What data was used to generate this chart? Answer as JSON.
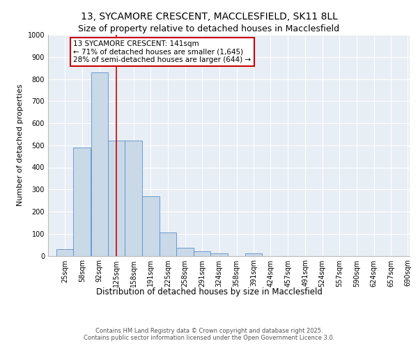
{
  "title_line1": "13, SYCAMORE CRESCENT, MACCLESFIELD, SK11 8LL",
  "title_line2": "Size of property relative to detached houses in Macclesfield",
  "xlabel": "Distribution of detached houses by size in Macclesfield",
  "ylabel": "Number of detached properties",
  "bar_left_edges": [
    25,
    58,
    92,
    125,
    158,
    191,
    225,
    258,
    291,
    324,
    358,
    391,
    424,
    457,
    491,
    524,
    557,
    590,
    624,
    657
  ],
  "bar_widths": [
    33,
    34,
    33,
    33,
    33,
    34,
    33,
    33,
    33,
    34,
    33,
    33,
    33,
    34,
    33,
    33,
    33,
    34,
    33,
    33
  ],
  "bar_heights": [
    30,
    490,
    830,
    520,
    520,
    270,
    105,
    37,
    20,
    12,
    0,
    12,
    0,
    0,
    0,
    0,
    0,
    0,
    0,
    0
  ],
  "bar_color": "#c9d9e8",
  "bar_edge_color": "#5b8fc9",
  "vline_x": 141,
  "vline_color": "#cc0000",
  "annotation_text": "13 SYCAMORE CRESCENT: 141sqm\n← 71% of detached houses are smaller (1,645)\n28% of semi-detached houses are larger (644) →",
  "annotation_box_color": "#cc0000",
  "ylim": [
    0,
    1000
  ],
  "yticks": [
    0,
    100,
    200,
    300,
    400,
    500,
    600,
    700,
    800,
    900,
    1000
  ],
  "xtick_labels": [
    "25sqm",
    "58sqm",
    "92sqm",
    "125sqm",
    "158sqm",
    "191sqm",
    "225sqm",
    "258sqm",
    "291sqm",
    "324sqm",
    "358sqm",
    "391sqm",
    "424sqm",
    "457sqm",
    "491sqm",
    "524sqm",
    "557sqm",
    "590sqm",
    "624sqm",
    "657sqm",
    "690sqm"
  ],
  "background_color": "#e8eef5",
  "grid_color": "#ffffff",
  "footer_text": "Contains HM Land Registry data © Crown copyright and database right 2025.\nContains public sector information licensed under the Open Government Licence 3.0.",
  "title_fontsize": 10,
  "subtitle_fontsize": 9,
  "tick_fontsize": 7,
  "ylabel_fontsize": 8,
  "xlabel_fontsize": 8.5,
  "annotation_fontsize": 7.5,
  "footer_fontsize": 6
}
